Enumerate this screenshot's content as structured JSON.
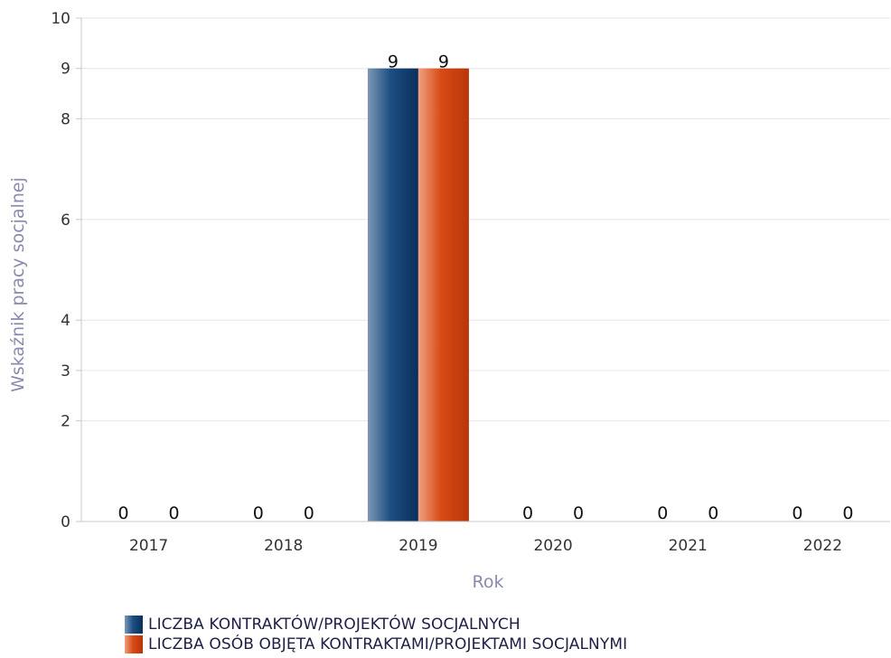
{
  "chart_data": {
    "type": "bar",
    "categories": [
      "2017",
      "2018",
      "2019",
      "2020",
      "2021",
      "2022"
    ],
    "series": [
      {
        "name": "LICZBA KONTRAKTÓW/PROJEKTÓW SOCJALNYCH",
        "values": [
          0,
          0,
          9,
          0,
          0,
          0
        ],
        "color": "#0d3a6b"
      },
      {
        "name": "LICZBA OSÓB OBJĘTA KONTRAKTAMI/PROJEKTAMI SOCJALNYMI",
        "values": [
          0,
          0,
          9,
          0,
          0,
          0
        ],
        "color": "#d0400e"
      }
    ],
    "xlabel": "Rok",
    "ylabel": "Wskaźnik pracy socjalnej",
    "ylim": [
      0,
      10
    ],
    "yticks": [
      "0",
      "2",
      "3",
      "4",
      "6",
      "8",
      "9",
      "10"
    ],
    "grid": true,
    "legend_position": "bottom-left"
  }
}
